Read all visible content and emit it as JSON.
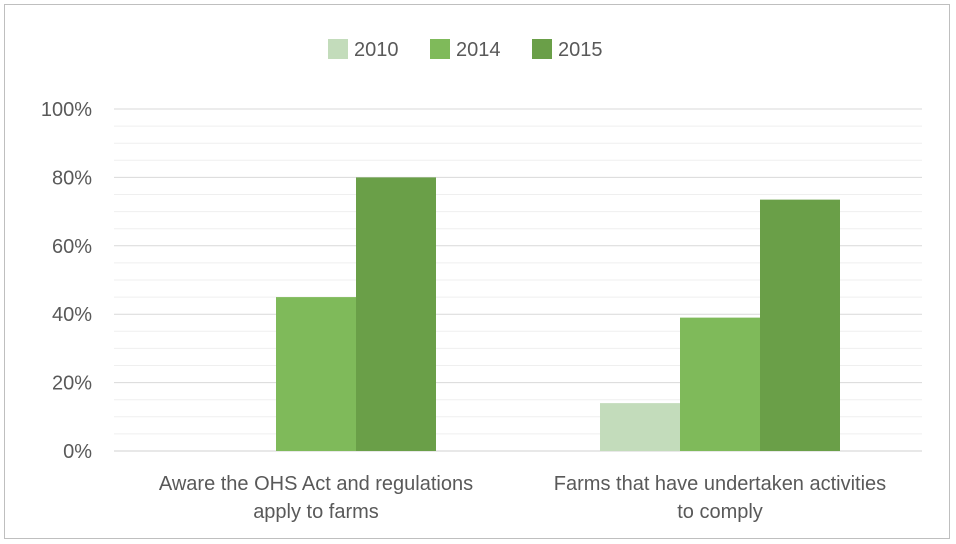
{
  "chart_data": {
    "type": "bar",
    "categories": [
      [
        "Aware the OHS Act and regulations",
        "apply to farms"
      ],
      [
        "Farms that have undertaken activities",
        "to comply"
      ]
    ],
    "series": [
      {
        "name": "2010",
        "values": [
          0,
          14
        ],
        "color": "#c3dcbb"
      },
      {
        "name": "2014",
        "values": [
          45,
          39
        ],
        "color": "#7fba5a"
      },
      {
        "name": "2015",
        "values": [
          80,
          73.5
        ],
        "color": "#6a9f48"
      }
    ],
    "y_ticks": [
      "0%",
      "20%",
      "40%",
      "60%",
      "80%",
      "100%"
    ],
    "ylim": [
      0,
      100
    ],
    "legend_position": "top-center",
    "grid": true
  }
}
